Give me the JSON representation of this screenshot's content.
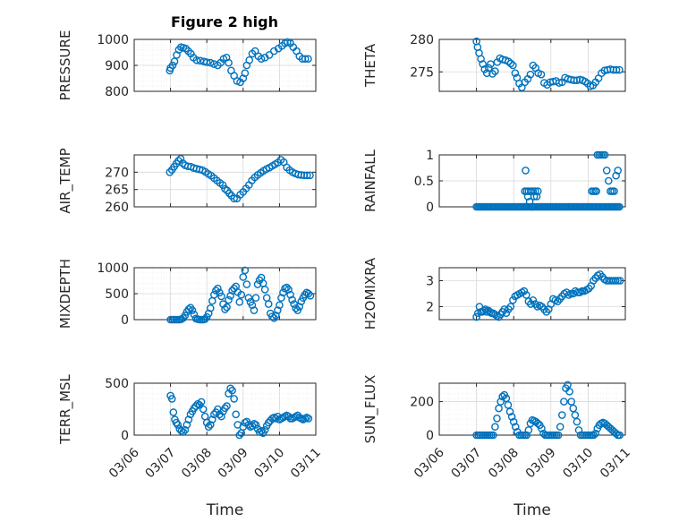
{
  "title": "Figure 2 high",
  "colors": {
    "marker": "#0072BD",
    "axes": "#262626"
  },
  "chart_data": [
    {
      "type": "scatter",
      "name": "pressure",
      "ylabel": "PRESSURE",
      "ylim": [
        800,
        1000
      ],
      "yticks": [
        "800",
        "900",
        "1000"
      ],
      "grid": true,
      "x": [
        0.98,
        1.0,
        1.06,
        1.11,
        1.17,
        1.23,
        1.29,
        1.35,
        1.42,
        1.49,
        1.56,
        1.63,
        1.72,
        1.82,
        1.92,
        2.0,
        2.1,
        2.2,
        2.3,
        2.38,
        2.46,
        2.54,
        2.6,
        2.67,
        2.75,
        2.83,
        2.92,
        3.0,
        3.05,
        3.1,
        3.17,
        3.25,
        3.33,
        3.42,
        3.5,
        3.6,
        3.72,
        3.85,
        3.97,
        4.07,
        4.15,
        4.22,
        4.3,
        4.38,
        4.47,
        4.55,
        4.63,
        4.71,
        4.79
      ],
      "y": [
        880,
        890,
        900,
        915,
        940,
        960,
        970,
        968,
        965,
        955,
        945,
        930,
        920,
        918,
        915,
        912,
        910,
        905,
        900,
        910,
        925,
        930,
        910,
        880,
        860,
        840,
        835,
        850,
        870,
        900,
        920,
        945,
        955,
        935,
        925,
        930,
        940,
        955,
        965,
        975,
        985,
        990,
        985,
        970,
        955,
        935,
        925,
        925,
        925
      ]
    },
    {
      "type": "scatter",
      "name": "theta",
      "ylabel": "THETA",
      "ylim": [
        272,
        280
      ],
      "yticks": [
        "275",
        "280"
      ],
      "grid": false,
      "x": [
        1.0,
        1.03,
        1.07,
        1.12,
        1.17,
        1.22,
        1.28,
        1.33,
        1.38,
        1.43,
        1.5,
        1.56,
        1.63,
        1.7,
        1.78,
        1.86,
        1.92,
        1.98,
        2.04,
        2.09,
        2.15,
        2.22,
        2.3,
        2.38,
        2.45,
        2.52,
        2.59,
        2.66,
        2.74,
        2.82,
        2.9,
        2.98,
        3.06,
        3.14,
        3.22,
        3.3,
        3.38,
        3.46,
        3.54,
        3.62,
        3.7,
        3.78,
        3.85,
        3.92,
        3.99,
        4.06,
        4.13,
        4.2,
        4.28,
        4.36,
        4.44,
        4.52,
        4.6,
        4.68,
        4.76,
        4.84
      ],
      "y": [
        279.7,
        278.8,
        277.9,
        277.0,
        276.2,
        275.4,
        274.8,
        275.6,
        276.2,
        274.7,
        275.1,
        276.5,
        277.1,
        276.9,
        276.8,
        276.6,
        276.3,
        276.0,
        274.8,
        274.1,
        273.2,
        272.6,
        273.4,
        273.9,
        274.6,
        276.0,
        275.6,
        274.8,
        274.6,
        273.3,
        273.0,
        273.4,
        273.5,
        273.6,
        273.3,
        273.4,
        274.1,
        273.9,
        273.8,
        273.7,
        273.7,
        273.8,
        273.7,
        273.5,
        273.2,
        272.8,
        272.9,
        273.4,
        274.0,
        274.8,
        275.2,
        275.3,
        275.4,
        275.3,
        275.3,
        275.3
      ]
    },
    {
      "type": "scatter",
      "name": "air_temp",
      "ylabel": "AIR_TEMP",
      "ylim": [
        260,
        275
      ],
      "yticks": [
        "260",
        "265",
        "270"
      ],
      "grid": false,
      "x": [
        0.98,
        1.04,
        1.1,
        1.16,
        1.22,
        1.28,
        1.34,
        1.4,
        1.48,
        1.56,
        1.64,
        1.72,
        1.8,
        1.88,
        1.96,
        2.04,
        2.12,
        2.2,
        2.28,
        2.36,
        2.44,
        2.5,
        2.56,
        2.62,
        2.68,
        2.75,
        2.83,
        2.92,
        3.0,
        3.08,
        3.16,
        3.24,
        3.32,
        3.4,
        3.48,
        3.56,
        3.64,
        3.72,
        3.8,
        3.88,
        3.96,
        4.04,
        4.12,
        4.2,
        4.28,
        4.36,
        4.44,
        4.52,
        4.6,
        4.68,
        4.76,
        4.84
      ],
      "y": [
        270.0,
        270.7,
        271.6,
        272.5,
        273.3,
        273.9,
        272.6,
        272.0,
        271.7,
        271.6,
        271.2,
        271.0,
        270.8,
        270.6,
        270.1,
        269.5,
        269.0,
        268.3,
        267.6,
        266.9,
        266.3,
        265.2,
        264.7,
        263.9,
        263.2,
        262.4,
        262.4,
        263.5,
        264.3,
        265.3,
        266.3,
        267.6,
        268.5,
        269.2,
        269.8,
        270.4,
        270.9,
        271.3,
        271.8,
        272.3,
        272.8,
        273.6,
        272.9,
        271.4,
        270.6,
        270.0,
        269.6,
        269.3,
        269.2,
        269.1,
        269.1,
        269.1
      ]
    },
    {
      "type": "scatter",
      "name": "rainfall",
      "ylabel": "RAINFALL",
      "ylim": [
        0,
        1
      ],
      "yticks": [
        "0",
        "0.5",
        "1"
      ],
      "grid": false,
      "x": [
        1.0,
        1.04,
        1.08,
        1.12,
        1.16,
        1.2,
        1.24,
        1.28,
        1.32,
        1.36,
        1.4,
        1.44,
        1.48,
        1.52,
        1.56,
        1.6,
        1.64,
        1.68,
        1.72,
        1.76,
        1.8,
        1.84,
        1.88,
        1.92,
        1.96,
        2.0,
        2.04,
        2.08,
        2.12,
        2.16,
        2.2,
        2.24,
        2.28,
        2.32,
        2.36,
        2.4,
        2.44,
        2.48,
        2.52,
        2.56,
        2.6,
        2.64,
        2.68,
        2.72,
        2.76,
        2.8,
        2.84,
        2.88,
        2.92,
        2.96,
        3.0,
        3.04,
        3.08,
        3.12,
        3.16,
        3.2,
        3.24,
        3.28,
        3.32,
        3.36,
        3.4,
        3.44,
        3.48,
        3.52,
        3.56,
        3.6,
        3.64,
        3.68,
        3.72,
        3.76,
        3.8,
        3.84,
        3.88,
        3.92,
        3.96,
        4.0,
        4.04,
        4.08,
        4.12,
        4.16,
        4.2,
        4.24,
        4.28,
        4.32,
        4.36,
        4.4,
        4.44,
        4.48,
        4.52,
        4.56,
        4.6,
        4.64,
        4.68,
        4.72,
        4.76,
        4.8,
        4.84,
        2.3,
        2.32,
        2.35,
        2.38,
        2.4,
        2.43,
        2.46,
        2.49,
        2.52,
        2.55,
        2.58,
        2.62,
        2.65,
        4.1,
        4.15,
        4.2,
        4.22,
        4.25,
        4.3,
        4.35,
        4.4,
        4.45,
        4.5,
        4.55,
        4.6,
        4.65,
        4.7,
        4.75,
        4.8
      ],
      "y": [
        0,
        0,
        0,
        0,
        0,
        0,
        0,
        0,
        0,
        0,
        0,
        0,
        0,
        0,
        0,
        0,
        0,
        0,
        0,
        0,
        0,
        0,
        0,
        0,
        0,
        0,
        0,
        0,
        0,
        0,
        0,
        0,
        0,
        0,
        0,
        0,
        0,
        0,
        0,
        0,
        0,
        0,
        0,
        0,
        0,
        0,
        0,
        0,
        0,
        0,
        0,
        0,
        0,
        0,
        0,
        0,
        0,
        0,
        0,
        0,
        0,
        0,
        0,
        0,
        0,
        0,
        0,
        0,
        0,
        0,
        0,
        0,
        0,
        0,
        0,
        0,
        0,
        0,
        0,
        0,
        0,
        0,
        0,
        0,
        0,
        0,
        0,
        0,
        0,
        0,
        0,
        0,
        0,
        0,
        0,
        0,
        0,
        0.3,
        0.7,
        0.3,
        0.2,
        0.3,
        0.1,
        0.3,
        0,
        0.3,
        0.2,
        0.3,
        0.2,
        0.3,
        0.3,
        0.3,
        0.3,
        0.3,
        1.0,
        1.0,
        1.0,
        1.0,
        1.0,
        0.7,
        0.5,
        0.3,
        0.3,
        0.3,
        0.6,
        0.7
      ]
    },
    {
      "type": "scatter",
      "name": "mixdepth",
      "ylabel": "MIXDEPTH",
      "ylim": [
        0,
        1000
      ],
      "yticks": [
        "0",
        "500",
        "1000"
      ],
      "grid": true,
      "x": [
        1.0,
        1.05,
        1.1,
        1.15,
        1.2,
        1.25,
        1.3,
        1.35,
        1.4,
        1.45,
        1.5,
        1.55,
        1.6,
        1.65,
        1.7,
        1.75,
        1.8,
        1.85,
        1.9,
        1.95,
        2.0,
        2.05,
        2.1,
        2.15,
        2.2,
        2.25,
        2.3,
        2.35,
        2.4,
        2.45,
        2.5,
        2.55,
        2.6,
        2.65,
        2.7,
        2.75,
        2.8,
        2.85,
        2.9,
        2.95,
        3.0,
        3.05,
        3.1,
        3.15,
        3.2,
        3.25,
        3.3,
        3.35,
        3.4,
        3.45,
        3.5,
        3.55,
        3.6,
        3.65,
        3.7,
        3.75,
        3.8,
        3.85,
        3.9,
        3.95,
        4.0,
        4.05,
        4.1,
        4.15,
        4.2,
        4.25,
        4.3,
        4.35,
        4.4,
        4.45,
        4.5,
        4.55,
        4.6,
        4.65,
        4.7,
        4.75,
        4.8,
        4.85
      ],
      "y": [
        0,
        0,
        0,
        0,
        0,
        0,
        10,
        30,
        80,
        150,
        200,
        230,
        180,
        100,
        20,
        10,
        0,
        0,
        0,
        10,
        50,
        120,
        220,
        360,
        480,
        560,
        600,
        520,
        450,
        300,
        200,
        240,
        380,
        460,
        560,
        600,
        640,
        530,
        340,
        480,
        820,
        950,
        680,
        420,
        340,
        280,
        180,
        420,
        680,
        760,
        810,
        700,
        580,
        420,
        300,
        120,
        60,
        30,
        80,
        180,
        280,
        420,
        520,
        600,
        620,
        580,
        480,
        380,
        300,
        220,
        180,
        250,
        350,
        420,
        480,
        520,
        500,
        460
      ]
    },
    {
      "type": "scatter",
      "name": "h2omixra",
      "ylabel": "H2OMIXRA",
      "ylim": [
        1.5,
        3.5
      ],
      "yticks": [
        "2",
        "3"
      ],
      "grid": false,
      "x": [
        1.0,
        1.04,
        1.08,
        1.12,
        1.16,
        1.2,
        1.24,
        1.28,
        1.32,
        1.36,
        1.4,
        1.45,
        1.5,
        1.55,
        1.6,
        1.65,
        1.7,
        1.75,
        1.8,
        1.86,
        1.92,
        1.98,
        2.04,
        2.1,
        2.16,
        2.22,
        2.28,
        2.34,
        2.4,
        2.46,
        2.52,
        2.58,
        2.64,
        2.7,
        2.76,
        2.82,
        2.88,
        2.94,
        3.0,
        3.06,
        3.12,
        3.18,
        3.24,
        3.3,
        3.36,
        3.42,
        3.48,
        3.54,
        3.6,
        3.66,
        3.72,
        3.78,
        3.84,
        3.9,
        3.96,
        4.02,
        4.08,
        4.14,
        4.2,
        4.26,
        4.32,
        4.38,
        4.44,
        4.5,
        4.56,
        4.62,
        4.68,
        4.74,
        4.8,
        4.86
      ],
      "y": [
        1.6,
        1.75,
        2.0,
        1.8,
        1.8,
        1.85,
        1.9,
        1.8,
        1.85,
        1.8,
        1.75,
        1.75,
        1.7,
        1.65,
        1.6,
        1.7,
        1.8,
        1.9,
        1.75,
        1.9,
        2.0,
        2.25,
        2.4,
        2.45,
        2.5,
        2.55,
        2.6,
        2.45,
        2.2,
        2.1,
        2.25,
        2.1,
        2.0,
        2.05,
        2.0,
        1.9,
        1.8,
        1.9,
        2.1,
        2.3,
        2.25,
        2.2,
        2.3,
        2.4,
        2.5,
        2.55,
        2.45,
        2.5,
        2.5,
        2.6,
        2.55,
        2.55,
        2.6,
        2.6,
        2.65,
        2.7,
        2.8,
        3.0,
        3.1,
        3.2,
        3.25,
        3.15,
        3.05,
        3.0,
        3.0,
        3.0,
        3.0,
        3.0,
        3.0,
        3.0
      ]
    },
    {
      "type": "scatter",
      "name": "terr_msl",
      "ylabel": "TERR_MSL",
      "ylim": [
        0,
        500
      ],
      "yticks": [
        "0",
        "500"
      ],
      "grid": true,
      "x": [
        1.0,
        1.04,
        1.08,
        1.12,
        1.16,
        1.2,
        1.25,
        1.3,
        1.35,
        1.4,
        1.45,
        1.5,
        1.55,
        1.6,
        1.65,
        1.7,
        1.75,
        1.8,
        1.85,
        1.9,
        1.95,
        2.0,
        2.05,
        2.1,
        2.15,
        2.2,
        2.25,
        2.3,
        2.35,
        2.4,
        2.45,
        2.5,
        2.55,
        2.6,
        2.65,
        2.7,
        2.75,
        2.8,
        2.85,
        2.9,
        2.95,
        3.0,
        3.05,
        3.1,
        3.15,
        3.2,
        3.25,
        3.3,
        3.35,
        3.4,
        3.45,
        3.5,
        3.55,
        3.6,
        3.65,
        3.7,
        3.75,
        3.8,
        3.85,
        3.9,
        3.95,
        4.0,
        4.05,
        4.1,
        4.15,
        4.2,
        4.25,
        4.3,
        4.35,
        4.4,
        4.45,
        4.5,
        4.55,
        4.6,
        4.65,
        4.7,
        4.75,
        4.8
      ],
      "y": [
        380,
        350,
        220,
        150,
        120,
        100,
        60,
        40,
        30,
        50,
        100,
        150,
        200,
        230,
        260,
        280,
        300,
        290,
        320,
        250,
        180,
        120,
        80,
        100,
        150,
        200,
        220,
        250,
        200,
        180,
        230,
        260,
        280,
        400,
        450,
        430,
        350,
        200,
        100,
        0,
        20,
        80,
        120,
        130,
        100,
        80,
        90,
        110,
        100,
        60,
        30,
        40,
        20,
        50,
        90,
        120,
        140,
        160,
        170,
        160,
        180,
        150,
        160,
        170,
        180,
        190,
        180,
        160,
        160,
        170,
        180,
        190,
        170,
        160,
        150,
        160,
        170,
        160
      ]
    },
    {
      "type": "scatter",
      "name": "sun_flux",
      "ylabel": "SUN_FLUX",
      "ylim": [
        0,
        310
      ],
      "yticks": [
        "0",
        "200"
      ],
      "grid": true,
      "x": [
        1.0,
        1.05,
        1.1,
        1.15,
        1.2,
        1.25,
        1.3,
        1.35,
        1.4,
        1.45,
        1.5,
        1.55,
        1.6,
        1.65,
        1.7,
        1.75,
        1.8,
        1.85,
        1.9,
        1.95,
        2.0,
        2.05,
        2.1,
        2.15,
        2.2,
        2.25,
        2.3,
        2.35,
        2.4,
        2.45,
        2.5,
        2.55,
        2.6,
        2.65,
        2.7,
        2.75,
        2.8,
        2.85,
        2.9,
        2.95,
        3.0,
        3.05,
        3.1,
        3.15,
        3.2,
        3.25,
        3.3,
        3.35,
        3.4,
        3.45,
        3.5,
        3.55,
        3.6,
        3.65,
        3.7,
        3.75,
        3.8,
        3.85,
        3.9,
        3.95,
        4.0,
        4.05,
        4.1,
        4.15,
        4.2,
        4.25,
        4.3,
        4.35,
        4.4,
        4.45,
        4.5,
        4.55,
        4.6,
        4.65,
        4.7,
        4.75,
        4.8,
        4.85
      ],
      "y": [
        0,
        0,
        0,
        0,
        0,
        0,
        0,
        0,
        0,
        0,
        50,
        100,
        160,
        200,
        230,
        240,
        220,
        180,
        140,
        110,
        80,
        50,
        20,
        0,
        0,
        0,
        0,
        0,
        30,
        70,
        90,
        85,
        80,
        70,
        60,
        40,
        10,
        0,
        0,
        0,
        0,
        0,
        0,
        0,
        0,
        50,
        120,
        200,
        280,
        300,
        260,
        200,
        160,
        120,
        80,
        30,
        0,
        0,
        0,
        0,
        0,
        0,
        0,
        0,
        10,
        40,
        60,
        70,
        75,
        70,
        60,
        50,
        40,
        30,
        20,
        10,
        0,
        0
      ]
    }
  ],
  "xaxis": {
    "range": [
      0,
      5
    ],
    "ticks": [
      "03/06",
      "03/07",
      "03/08",
      "03/09",
      "03/10",
      "03/11"
    ],
    "label": "Time"
  }
}
